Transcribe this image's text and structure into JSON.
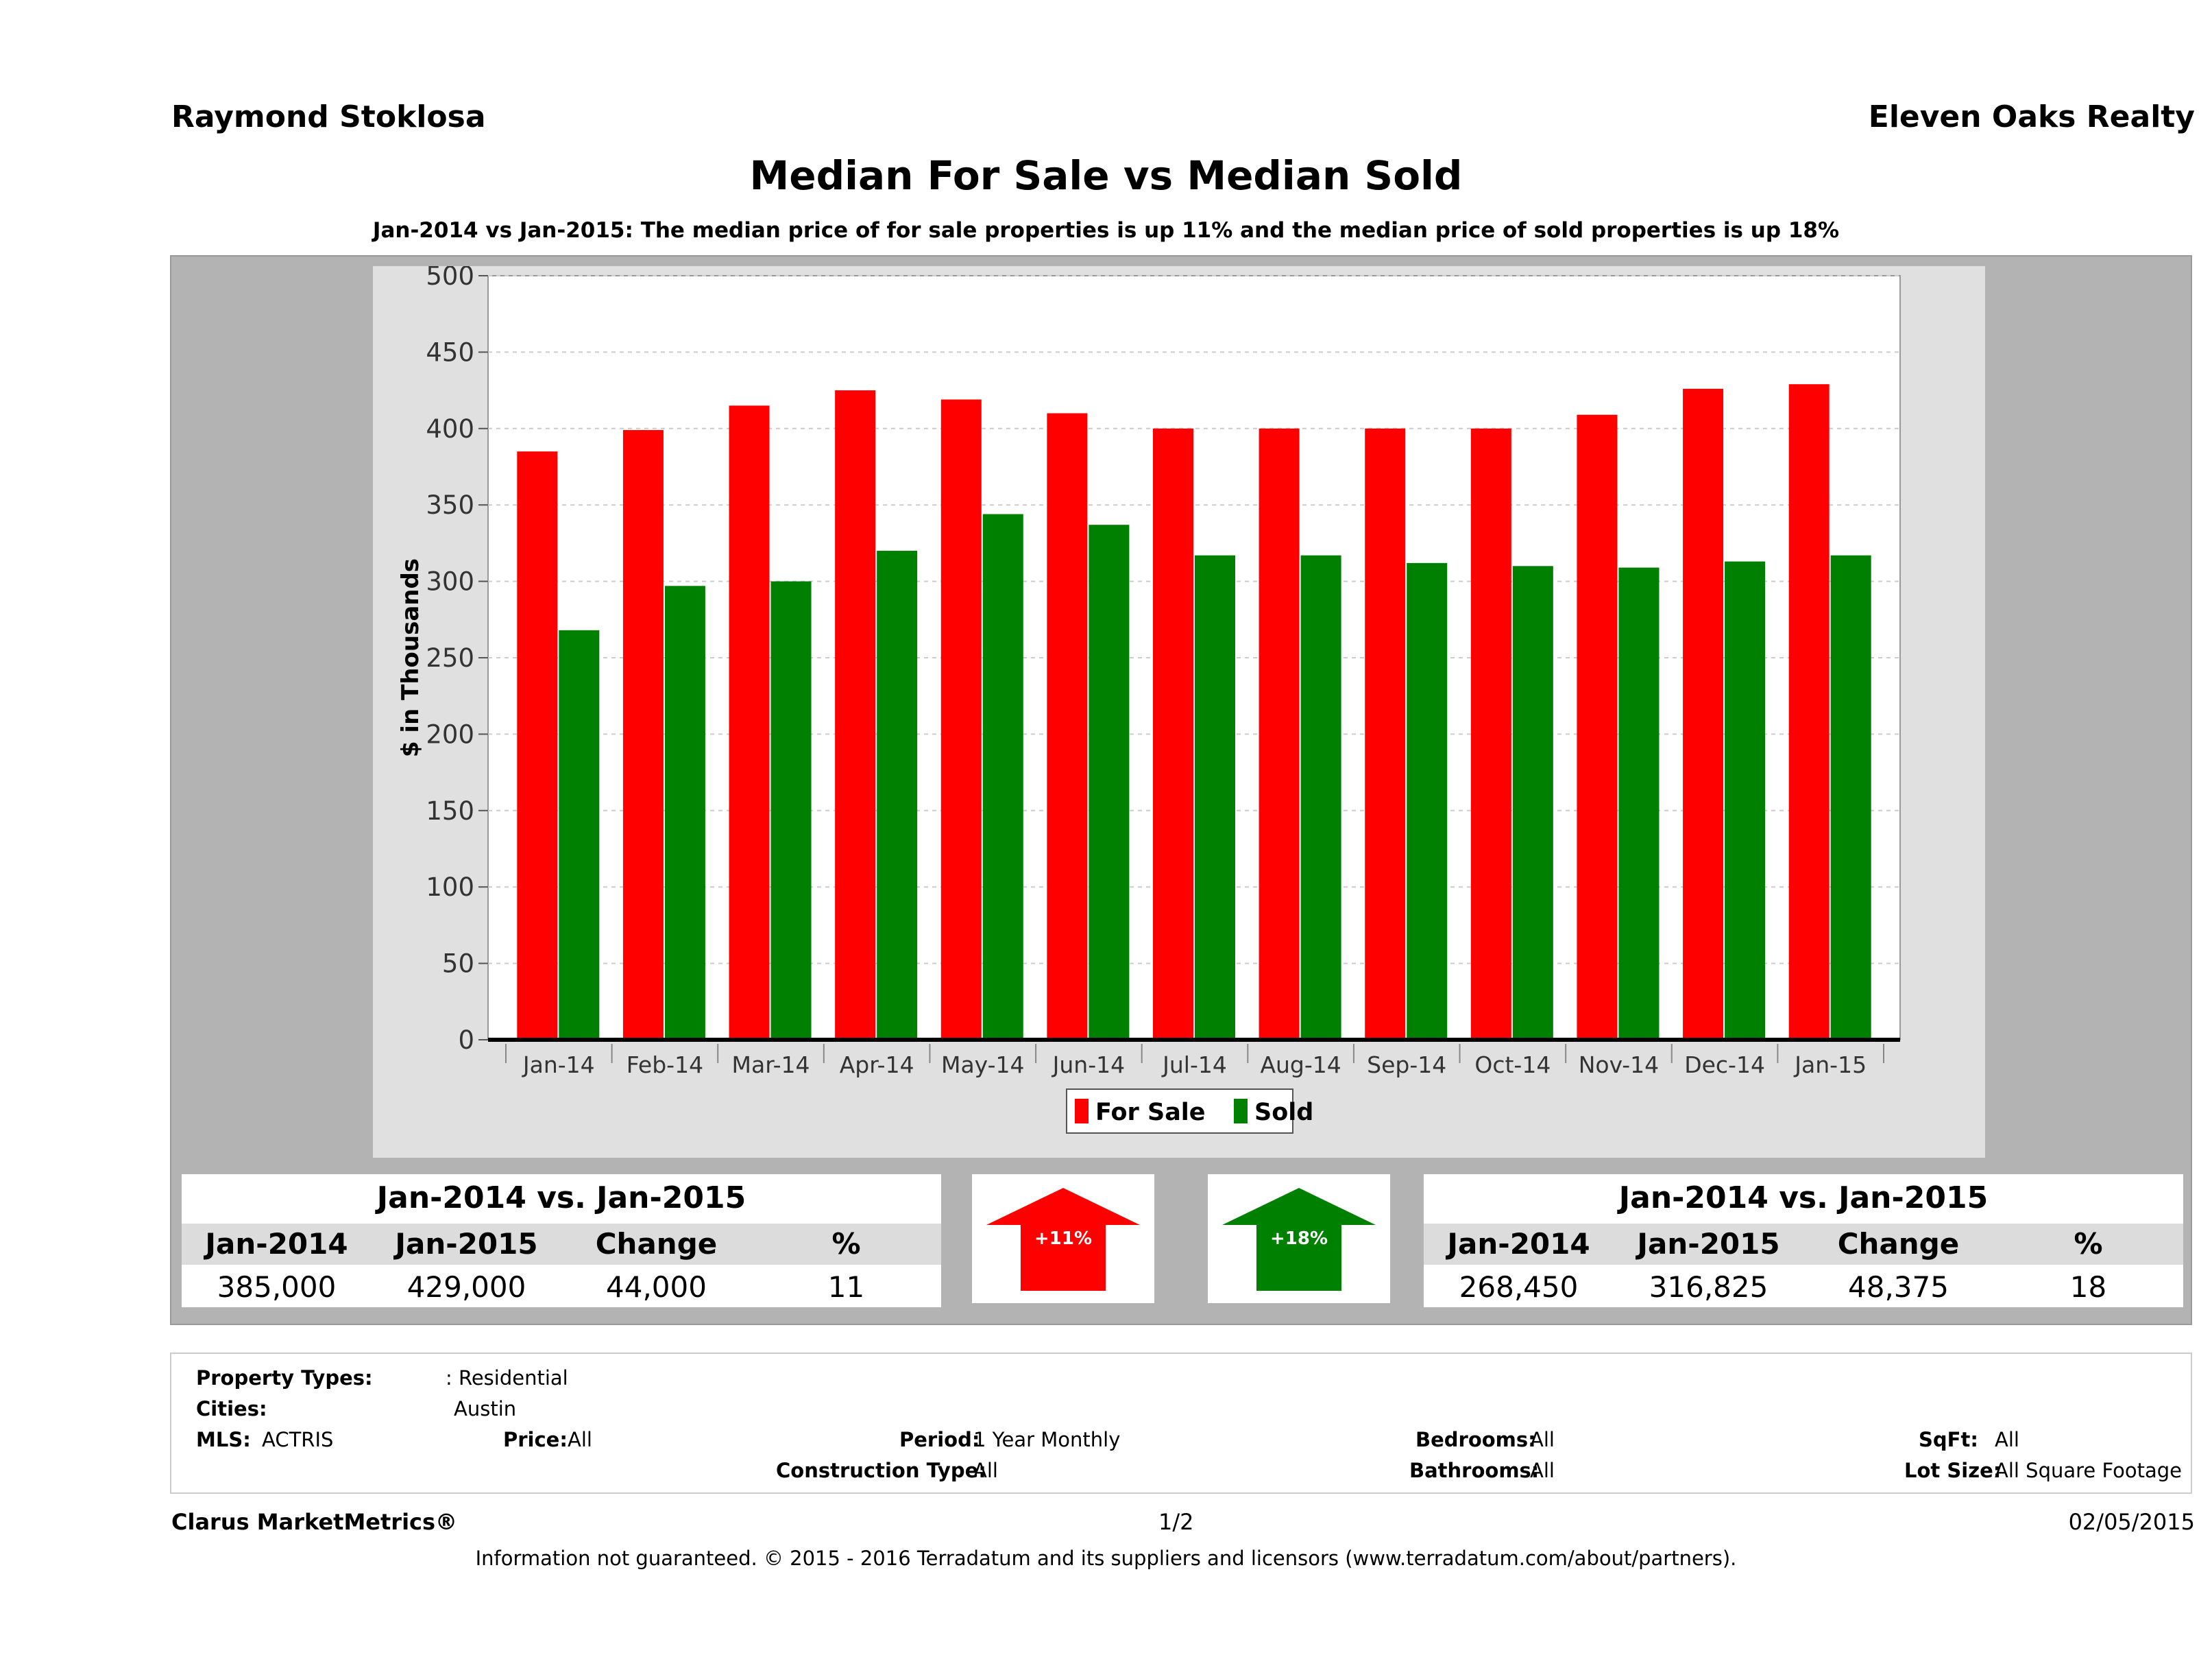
{
  "header": {
    "agent": "Raymond Stoklosa",
    "brokerage": "Eleven Oaks Realty"
  },
  "title": "Median For Sale vs Median Sold",
  "subtitle": "Jan-2014 vs Jan-2015: The median price of for sale properties is up 11% and the median price of sold properties is up 18%",
  "chart_data": {
    "type": "bar",
    "categories": [
      "Jan-14",
      "Feb-14",
      "Mar-14",
      "Apr-14",
      "May-14",
      "Jun-14",
      "Jul-14",
      "Aug-14",
      "Sep-14",
      "Oct-14",
      "Nov-14",
      "Dec-14",
      "Jan-15"
    ],
    "series": [
      {
        "name": "For Sale",
        "color": "#ff0000",
        "values": [
          385,
          399,
          415,
          425,
          419,
          410,
          400,
          400,
          400,
          400,
          409,
          426,
          429
        ]
      },
      {
        "name": "Sold",
        "color": "#008000",
        "values": [
          268,
          297,
          300,
          320,
          344,
          337,
          317,
          317,
          312,
          310,
          309,
          313,
          317
        ]
      }
    ],
    "ylabel": "$ in Thousands",
    "ylim": [
      0,
      500
    ],
    "yticks": [
      0,
      50,
      100,
      150,
      200,
      250,
      300,
      350,
      400,
      450,
      500
    ],
    "grid": true,
    "legend": "bottom-center"
  },
  "for_sale_stats": {
    "title": "Jan-2014 vs. Jan-2015",
    "headers": [
      "Jan-2014",
      "Jan-2015",
      "Change",
      "%"
    ],
    "values": [
      "385,000",
      "429,000",
      "44,000",
      "11"
    ],
    "badge": "+11%",
    "badge_color": "#ff0000"
  },
  "sold_stats": {
    "title": "Jan-2014 vs. Jan-2015",
    "headers": [
      "Jan-2014",
      "Jan-2015",
      "Change",
      "%"
    ],
    "values": [
      "268,450",
      "316,825",
      "48,375",
      "18"
    ],
    "badge": "+18%",
    "badge_color": "#008000"
  },
  "criteria": {
    "property_types_label": "Property Types:",
    "property_types": ": Residential",
    "cities_label": "Cities:",
    "cities": "Austin",
    "mls_label": "MLS:",
    "mls": "ACTRIS",
    "price_label": "Price:",
    "price": "All",
    "period_label": "Period:",
    "period": "1 Year Monthly",
    "construction_label": "Construction Type:",
    "construction": "All",
    "bedrooms_label": "Bedrooms:",
    "bedrooms": "All",
    "bathrooms_label": "Bathrooms:",
    "bathrooms": "All",
    "sqft_label": "SqFt:",
    "sqft": "All",
    "lot_label": "Lot Size:",
    "lot": "All Square Footage"
  },
  "footer": {
    "product": "Clarus MarketMetrics®",
    "page": "1/2",
    "date": "02/05/2015",
    "disclaimer": "Information not guaranteed. © 2015 - 2016 Terradatum and its suppliers and licensors (www.terradatum.com/about/partners)."
  }
}
